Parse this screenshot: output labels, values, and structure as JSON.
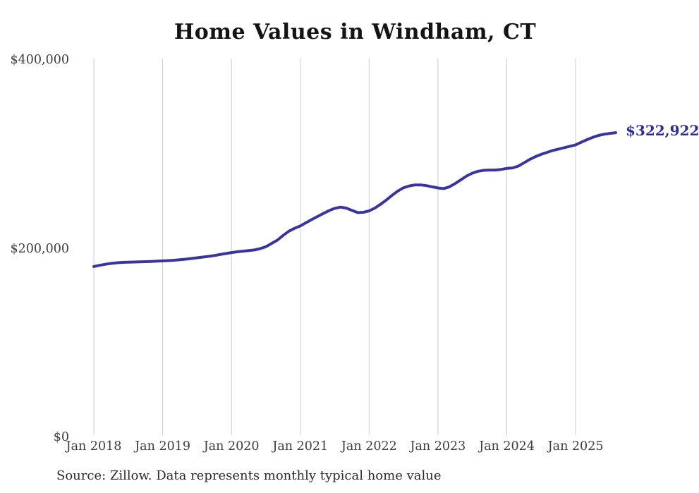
{
  "chart_data": {
    "type": "line",
    "title": "Home Values in Windham, CT",
    "source": "Source: Zillow. Data represents monthly typical home value",
    "legend": "none",
    "grid": "vertical-only",
    "ylim": [
      0,
      400000
    ],
    "yticks": [
      {
        "value": 0,
        "label": "$0"
      },
      {
        "value": 200000,
        "label": "$200,000"
      },
      {
        "value": 400000,
        "label": "$400,000"
      }
    ],
    "xticks": [
      {
        "index": 0,
        "label": "Jan 2018"
      },
      {
        "index": 12,
        "label": "Jan 2019"
      },
      {
        "index": 24,
        "label": "Jan 2020"
      },
      {
        "index": 36,
        "label": "Jan 2021"
      },
      {
        "index": 48,
        "label": "Jan 2022"
      },
      {
        "index": 60,
        "label": "Jan 2023"
      },
      {
        "index": 72,
        "label": "Jan 2024"
      },
      {
        "index": 84,
        "label": "Jan 2025"
      }
    ],
    "x": [
      "2018-01",
      "2018-02",
      "2018-03",
      "2018-04",
      "2018-05",
      "2018-06",
      "2018-07",
      "2018-08",
      "2018-09",
      "2018-10",
      "2018-11",
      "2018-12",
      "2019-01",
      "2019-02",
      "2019-03",
      "2019-04",
      "2019-05",
      "2019-06",
      "2019-07",
      "2019-08",
      "2019-09",
      "2019-10",
      "2019-11",
      "2019-12",
      "2020-01",
      "2020-02",
      "2020-03",
      "2020-04",
      "2020-05",
      "2020-06",
      "2020-07",
      "2020-08",
      "2020-09",
      "2020-10",
      "2020-11",
      "2020-12",
      "2021-01",
      "2021-02",
      "2021-03",
      "2021-04",
      "2021-05",
      "2021-06",
      "2021-07",
      "2021-08",
      "2021-09",
      "2021-10",
      "2021-11",
      "2021-12",
      "2022-01",
      "2022-02",
      "2022-03",
      "2022-04",
      "2022-05",
      "2022-06",
      "2022-07",
      "2022-08",
      "2022-09",
      "2022-10",
      "2022-11",
      "2022-12",
      "2023-01",
      "2023-02",
      "2023-03",
      "2023-04",
      "2023-05",
      "2023-06",
      "2023-07",
      "2023-08",
      "2023-09",
      "2023-10",
      "2023-11",
      "2023-12",
      "2024-01",
      "2024-02",
      "2024-03",
      "2024-04",
      "2024-05",
      "2024-06",
      "2024-07",
      "2024-08",
      "2024-09",
      "2024-10",
      "2024-11",
      "2024-12",
      "2025-01",
      "2025-02",
      "2025-03",
      "2025-04",
      "2025-05",
      "2025-06",
      "2025-07",
      "2025-08"
    ],
    "values": [
      181000,
      182300,
      183400,
      184300,
      185000,
      185400,
      185600,
      185800,
      186000,
      186200,
      186400,
      186700,
      187000,
      187300,
      187700,
      188200,
      188800,
      189500,
      190300,
      191000,
      191800,
      192700,
      193700,
      194800,
      195800,
      196600,
      197300,
      197900,
      198600,
      200000,
      202000,
      205500,
      209000,
      214000,
      218500,
      221500,
      224000,
      227500,
      230800,
      234000,
      237200,
      240200,
      242700,
      244000,
      243000,
      240500,
      238200,
      238500,
      240000,
      243000,
      247000,
      251500,
      256500,
      261000,
      264500,
      266500,
      267500,
      267500,
      266800,
      265500,
      264300,
      263600,
      265500,
      269000,
      273000,
      277000,
      280000,
      282000,
      283000,
      283300,
      283300,
      284000,
      285000,
      285500,
      287500,
      291000,
      294500,
      297500,
      300000,
      302000,
      304000,
      305500,
      307000,
      308500,
      310000,
      312800,
      315500,
      318000,
      320000,
      321300,
      322200,
      322922
    ],
    "annotation": {
      "text": "$322,922",
      "value": 322922
    },
    "colors": {
      "line": "#3a34a0",
      "annotation": "#302c98",
      "gridline": "#cccccc",
      "tick_text": "#3d3d3d",
      "title_text": "#141414",
      "source_text": "#2b2b2b",
      "background": "#ffffff"
    }
  }
}
